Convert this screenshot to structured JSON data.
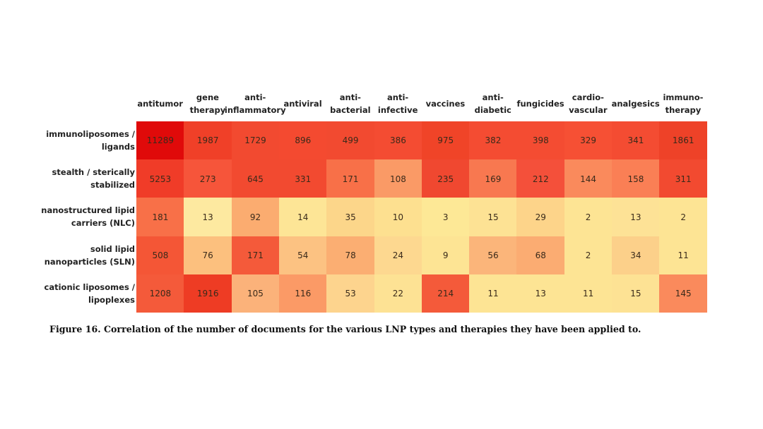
{
  "chart_data": {
    "type": "heatmap",
    "title": "",
    "caption": "Figure 16. Correlation of the number of documents for the various LNP types and therapies they have been applied to.",
    "columns": [
      "antitumor",
      "gene\ntherapy",
      "anti-\ninflammatory",
      "antiviral",
      "anti-\nbacterial",
      "anti-\ninfective",
      "vaccines",
      "anti-\ndiabetic",
      "fungicides",
      "cardio-\nvascular",
      "analgesics",
      "immuno-\ntherapy"
    ],
    "rows": [
      "immunoliposomes /\nligands",
      "stealth / sterically\nstabilized",
      "nanostructured lipid\ncarriers (NLC)",
      "solid lipid\nnanoparticles (SLN)",
      "cationic liposomes /\nlipoplexes"
    ],
    "values": [
      [
        11289,
        1987,
        1729,
        896,
        499,
        386,
        975,
        382,
        398,
        329,
        341,
        1861
      ],
      [
        5253,
        273,
        645,
        331,
        171,
        108,
        235,
        169,
        212,
        144,
        158,
        311
      ],
      [
        181,
        13,
        92,
        14,
        35,
        10,
        3,
        15,
        29,
        2,
        13,
        2
      ],
      [
        508,
        76,
        171,
        54,
        78,
        24,
        9,
        56,
        68,
        2,
        34,
        11
      ],
      [
        1208,
        1916,
        105,
        116,
        53,
        22,
        214,
        11,
        13,
        11,
        15,
        145
      ]
    ],
    "colors": [
      [
        "#e00a0a",
        "#f04028",
        "#f24a30",
        "#f44a30",
        "#f24a30",
        "#f44c32",
        "#f04428",
        "#f44c32",
        "#f44c32",
        "#f65034",
        "#f44c32",
        "#ee4228"
      ],
      [
        "#f03c28",
        "#f6553a",
        "#f24a30",
        "#f24a30",
        "#f87048",
        "#fa9a66",
        "#f04830",
        "#f87850",
        "#f4503a",
        "#fa8a5c",
        "#fa7f55",
        "#f24a30"
      ],
      [
        "#f87048",
        "#fde9a0",
        "#fbac70",
        "#fde596",
        "#fcd68a",
        "#fde090",
        "#fde896",
        "#fde294",
        "#fdd48a",
        "#fde494",
        "#fde296",
        "#fde494"
      ],
      [
        "#f45636",
        "#fcc07e",
        "#f45a3a",
        "#fcc282",
        "#fbae72",
        "#fdd890",
        "#fde494",
        "#fbb57a",
        "#fbac72",
        "#fde494",
        "#fcd08a",
        "#fde494"
      ],
      [
        "#f45a3a",
        "#ee3c24",
        "#fbb27a",
        "#fb9a66",
        "#fdd48e",
        "#fde294",
        "#f45a3a",
        "#fde494",
        "#fde494",
        "#fde494",
        "#fde294",
        "#fa8a5c"
      ]
    ],
    "colormap": "yellow-orange-red",
    "legend": "none"
  }
}
